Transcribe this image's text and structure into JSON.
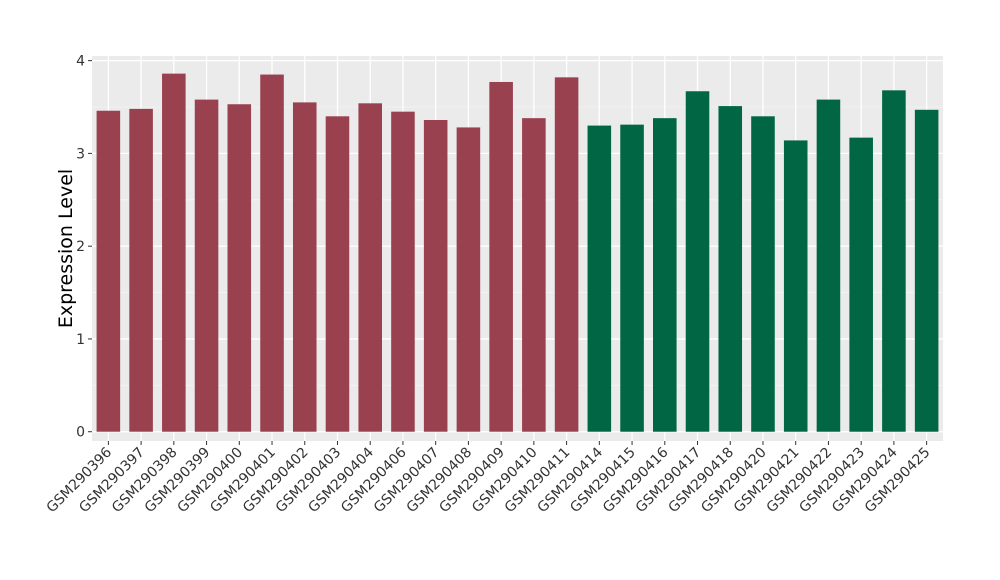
{
  "chart_data": {
    "type": "bar",
    "ylabel": "Expression Level",
    "xlabel": "",
    "title": "",
    "ylim": [
      -0.1,
      4.05
    ],
    "yticks": [
      0,
      1,
      2,
      3,
      4
    ],
    "grid": true,
    "legend": "none",
    "colors": {
      "group1": "#9a4150",
      "group2": "#006644",
      "panel": "#ebebeb",
      "grid": "#ffffff"
    },
    "categories": [
      "GSM290396",
      "GSM290397",
      "GSM290398",
      "GSM290399",
      "GSM290400",
      "GSM290401",
      "GSM290402",
      "GSM290403",
      "GSM290404",
      "GSM290406",
      "GSM290407",
      "GSM290408",
      "GSM290409",
      "GSM290410",
      "GSM290411",
      "GSM290414",
      "GSM290415",
      "GSM290416",
      "GSM290417",
      "GSM290418",
      "GSM290420",
      "GSM290421",
      "GSM290422",
      "GSM290423",
      "GSM290424",
      "GSM290425"
    ],
    "values": [
      3.46,
      3.48,
      3.86,
      3.58,
      3.53,
      3.85,
      3.55,
      3.4,
      3.54,
      3.45,
      3.36,
      3.28,
      3.77,
      3.38,
      3.82,
      3.3,
      3.31,
      3.38,
      3.67,
      3.51,
      3.4,
      3.14,
      3.58,
      3.17,
      3.68,
      3.47
    ],
    "groups": [
      1,
      1,
      1,
      1,
      1,
      1,
      1,
      1,
      1,
      1,
      1,
      1,
      1,
      1,
      1,
      2,
      2,
      2,
      2,
      2,
      2,
      2,
      2,
      2,
      2,
      2
    ]
  }
}
